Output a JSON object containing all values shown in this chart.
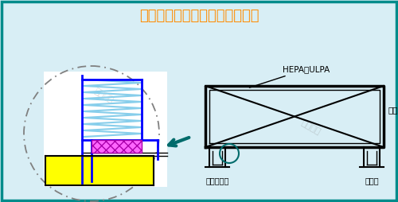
{
  "title": "液槽密封高效过滤器安装示意图",
  "title_color": "#FF8C00",
  "bg_color": "#D8EEF5",
  "border_color": "#008B8B",
  "watermark": "广州梓净",
  "hepa_label": "HEPA或ULPA",
  "label_knife": "刀架",
  "label_trough": "铝合金液槽",
  "label_seal": "密封液",
  "arrow_color": "#006B6B"
}
